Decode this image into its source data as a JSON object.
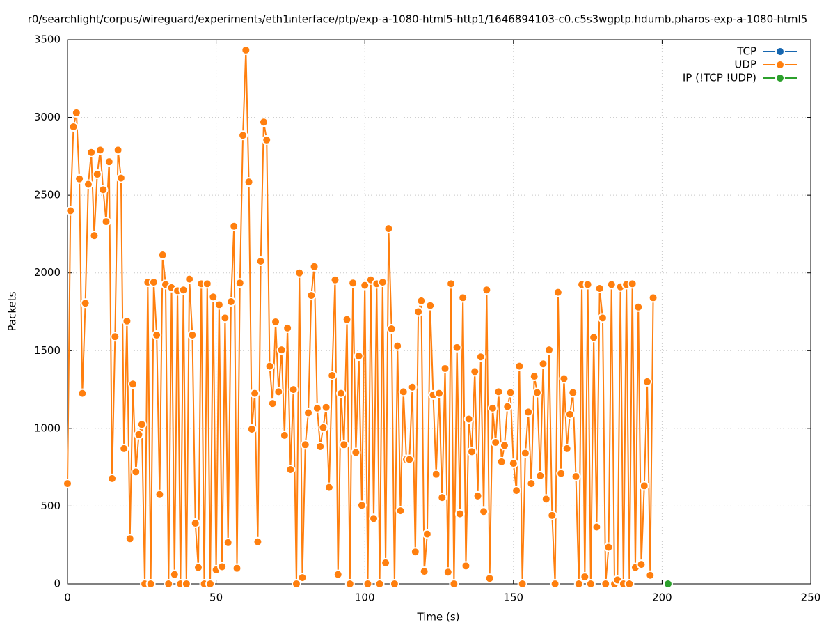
{
  "chart_data": {
    "type": "line",
    "title": "r0/searchlight/corpus/wireguard/experiment₃/eth1ᵢnterface/ptp/exp-a-1080-html5-http1/1646894103-c0.c5s3wgptp.hdumb.pharos-exp-a-1080-html5",
    "x_label": "Time (s)",
    "y_label": "Packets",
    "xlim": [
      0,
      250
    ],
    "xticks": [
      0,
      50,
      100,
      150,
      200,
      250
    ],
    "ylim": [
      0,
      3500
    ],
    "yticks": [
      0,
      500,
      1000,
      1500,
      2000,
      2500,
      3000,
      3500
    ],
    "grid": true,
    "legend": "top-right",
    "series": [
      {
        "name": "TCP",
        "color": "#1767b0",
        "x": [],
        "values": []
      },
      {
        "name": "UDP",
        "color": "#ff7f0e",
        "x": [
          0,
          1,
          2,
          3,
          4,
          5,
          6,
          7,
          8,
          9,
          10,
          11,
          12,
          13,
          14,
          15,
          16,
          17,
          18,
          19,
          20,
          21,
          22,
          23,
          24,
          25,
          26,
          27,
          28,
          29,
          30,
          31,
          32,
          33,
          34,
          35,
          36,
          37,
          38,
          39,
          40,
          41,
          42,
          43,
          44,
          45,
          46,
          47,
          48,
          49,
          50,
          51,
          52,
          53,
          54,
          55,
          56,
          57,
          58,
          59,
          60,
          61,
          62,
          63,
          64,
          65,
          66,
          67,
          68,
          69,
          70,
          71,
          72,
          73,
          74,
          75,
          76,
          77,
          78,
          79,
          80,
          81,
          82,
          83,
          84,
          85,
          86,
          87,
          88,
          89,
          90,
          91,
          92,
          93,
          94,
          95,
          96,
          97,
          98,
          99,
          100,
          101,
          102,
          103,
          104,
          105,
          106,
          107,
          108,
          109,
          110,
          111,
          112,
          113,
          114,
          115,
          116,
          117,
          118,
          119,
          120,
          121,
          122,
          123,
          124,
          125,
          126,
          127,
          128,
          129,
          130,
          131,
          132,
          133,
          134,
          135,
          136,
          137,
          138,
          139,
          140,
          141,
          142,
          143,
          144,
          145,
          146,
          147,
          148,
          149,
          150,
          151,
          152,
          153,
          154,
          155,
          156,
          157,
          158,
          159,
          160,
          161,
          162,
          163,
          164,
          165,
          166,
          167,
          168,
          169,
          170,
          171,
          172,
          173,
          174,
          175,
          176,
          177,
          178,
          179,
          180,
          181,
          182,
          183,
          184,
          185,
          186,
          187,
          188,
          189,
          190,
          191,
          192,
          193,
          194,
          195,
          196,
          197
        ],
        "values": [
          645,
          2400,
          2940,
          3030,
          2605,
          1225,
          1805,
          2570,
          2775,
          2240,
          2635,
          2790,
          2535,
          2330,
          2715,
          677,
          1590,
          2790,
          2610,
          870,
          1690,
          290,
          1285,
          720,
          960,
          1025,
          0,
          1940,
          0,
          1940,
          1600,
          575,
          2115,
          1925,
          0,
          1905,
          60,
          1885,
          0,
          1890,
          0,
          1960,
          1600,
          390,
          105,
          1930,
          0,
          1930,
          0,
          1845,
          90,
          1795,
          110,
          1710,
          265,
          1815,
          2300,
          100,
          1935,
          2885,
          3433,
          2585,
          995,
          1225,
          270,
          2075,
          2970,
          2855,
          1400,
          1160,
          1685,
          1235,
          1505,
          955,
          1645,
          735,
          1250,
          0,
          2000,
          40,
          895,
          1100,
          1855,
          2040,
          1130,
          883,
          1005,
          1135,
          620,
          1340,
          1955,
          60,
          1225,
          895,
          1700,
          0,
          1935,
          845,
          1465,
          505,
          1920,
          0,
          1955,
          420,
          1930,
          0,
          1940,
          135,
          2285,
          1640,
          0,
          1530,
          470,
          1235,
          800,
          800,
          1265,
          205,
          1750,
          1820,
          80,
          320,
          1790,
          1215,
          705,
          1225,
          555,
          1385,
          75,
          1930,
          0,
          1520,
          450,
          1840,
          115,
          1060,
          850,
          1365,
          565,
          1460,
          465,
          1890,
          35,
          1130,
          910,
          1235,
          785,
          890,
          1140,
          1230,
          775,
          600,
          1400,
          0,
          840,
          1105,
          645,
          1335,
          1230,
          695,
          1415,
          545,
          1505,
          440,
          0,
          1875,
          710,
          1320,
          870,
          1090,
          1230,
          690,
          0,
          1925,
          45,
          1925,
          0,
          1585,
          365,
          1900,
          1710,
          0,
          235,
          1925,
          0,
          25,
          1910,
          0,
          1925,
          0,
          1930,
          105,
          1780,
          125,
          630,
          1300,
          55,
          1840
        ]
      },
      {
        "name": "IP (!TCP  !UDP)",
        "color": "#2ca02c",
        "x": [
          202
        ],
        "values": [
          0
        ]
      }
    ]
  }
}
